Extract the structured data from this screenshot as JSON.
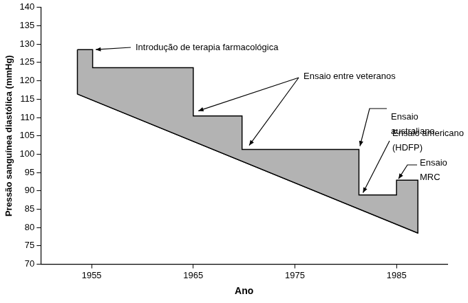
{
  "chart_data": {
    "type": "line",
    "xlabel": "Ano",
    "ylabel": "Pressão sanguínea diastólica (mmHg)",
    "xlim": [
      1950,
      1990
    ],
    "xticks": [
      1955,
      1965,
      1975,
      1985
    ],
    "ylim": [
      70,
      140
    ],
    "yticks": [
      70,
      75,
      80,
      85,
      90,
      95,
      100,
      105,
      110,
      115,
      120,
      125,
      130,
      135,
      140
    ],
    "grid": false,
    "color": "#b3b3b3",
    "series": [
      {
        "color": "#000000",
        "x": [
          1953.6,
          1955.1,
          1955.1,
          1965,
          1965,
          1969.8,
          1969.8,
          1981.3,
          1981.3,
          1985,
          1985,
          1987.1
        ],
        "values": [
          128.5,
          128.5,
          123.6,
          123.6,
          110.4,
          110.4,
          101.3,
          101.3,
          88.9,
          88.9,
          92.9,
          92.9
        ]
      },
      {
        "color": "#000000",
        "x": [
          1953.6,
          1987.1
        ],
        "values": [
          116.4,
          78.5
        ]
      }
    ],
    "annotations": [
      {
        "text": "Introdução de terapia farmacológica",
        "targets": [
          {
            "x": 1955.4,
            "y": 128.5
          }
        ]
      },
      {
        "text": "Ensaio entre veteranos",
        "targets": [
          {
            "x": 1965.5,
            "y": 111.8
          },
          {
            "x": 1970.5,
            "y": 102.4
          }
        ]
      },
      {
        "text": "Ensaio\naustraliano",
        "targets": [
          {
            "x": 1981.4,
            "y": 102.2
          }
        ]
      },
      {
        "text": "Ensaio americano\n(HDFP)",
        "targets": [
          {
            "x": 1981.7,
            "y": 89.5
          }
        ]
      },
      {
        "text": "Ensaio\nMRC",
        "targets": [
          {
            "x": 1985.2,
            "y": 93.3
          }
        ]
      }
    ]
  }
}
